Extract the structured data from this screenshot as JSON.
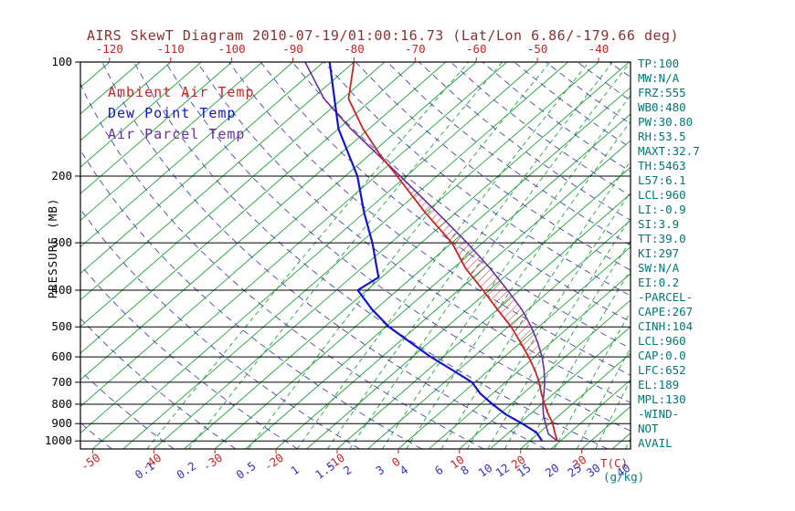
{
  "title": "AIRS SkewT Diagram 2010-07-19/01:00:16.73 (Lat/Lon 6.86/-179.66 deg)",
  "colors": {
    "background": "#ffffff",
    "title": "#8b2f2f",
    "stats": "#007878",
    "temp_red": "#cc2222",
    "dew_blue": "#1414cc",
    "parcel_purple": "#6a2d9f",
    "isotherm_green": "#1fa33c",
    "adiabat_indigo": "#4444aa",
    "axis_black": "#000000",
    "mixing_label_blue": "#3333bb",
    "unit_teal": "#008080"
  },
  "legend": {
    "ambient": {
      "label": "Ambient Air Temp",
      "color": "#cc2222"
    },
    "dewpoint": {
      "label": "Dew Point Temp",
      "color": "#1414cc"
    },
    "parcel": {
      "label": "Air Parcel Temp",
      "color": "#6a2d9f"
    }
  },
  "axes": {
    "pressure_label": "PRESSURE (MB)",
    "pressure_ticks": [
      100,
      200,
      300,
      400,
      500,
      600,
      700,
      800,
      900,
      1000
    ],
    "top_temp_ticks": [
      -120,
      -110,
      -100,
      -90,
      -80,
      -70,
      -60,
      -50,
      -40
    ],
    "bottom_temp_ticks": [
      -50,
      -40,
      -30,
      -20,
      -10,
      0,
      10,
      20,
      30
    ],
    "temp_unit_label": "T(C)",
    "mixing_ratio_ticks": [
      0.1,
      0.2,
      0.5,
      1,
      1.5,
      2,
      3,
      4,
      6,
      8,
      10,
      12,
      15,
      20,
      25,
      30,
      40
    ],
    "mixing_unit_label": "(g/kg)"
  },
  "stats_panel": {
    "lines": [
      "TP:100",
      "MW:N/A",
      "FRZ:555",
      "WB0:480",
      "PW:30.80",
      "RH:53.5",
      "MAXT:32.7",
      "TH:5463",
      "L57:6.1",
      "LCL:960",
      "LI:-0.9",
      "SI:3.9",
      "TT:39.0",
      "KI:297",
      "SW:N/A",
      "EI:0.2",
      "-PARCEL-",
      "CAPE:267",
      "CINH:104",
      "LCL:960",
      "CAP:0.0",
      "LFC:652",
      "EL:189",
      "MPL:130",
      "-WIND-",
      "NOT",
      "AVAIL"
    ]
  },
  "chart_data": {
    "type": "line",
    "subtype": "skew-t-log-p",
    "title": "AIRS SkewT Diagram 2010-07-19/01:00:16.73 (Lat/Lon 6.86/-179.66 deg)",
    "xlabel": "T(C)",
    "ylabel": "PRESSURE (MB)",
    "y_scale": "log",
    "y_range_mb": [
      100,
      1050
    ],
    "x_range_c_at_surface": [
      -52,
      38
    ],
    "legend_position": "top-left-inside",
    "grid": {
      "isobars_mb": [
        200,
        300,
        400,
        500,
        600,
        700,
        800,
        900,
        1000
      ],
      "isotherms_c": {
        "min": -160,
        "max": 45,
        "step": 5
      },
      "dry_adiabats_theta_c": {
        "min": -60,
        "max": 190,
        "step": 10
      },
      "mixing_ratio_g_kg": [
        0.1,
        0.2,
        0.5,
        1,
        1.5,
        2,
        3,
        4,
        6,
        8,
        10,
        12,
        15,
        20,
        25,
        30,
        40
      ]
    },
    "hatch_between_pressures_mb": [
      200,
      600
    ],
    "series": [
      {
        "name": "Ambient Air Temp",
        "color": "#cc2222",
        "points": [
          [
            1000,
            24.5
          ],
          [
            950,
            22.5
          ],
          [
            900,
            20.5
          ],
          [
            850,
            18.0
          ],
          [
            800,
            15.5
          ],
          [
            750,
            13.0
          ],
          [
            700,
            10.5
          ],
          [
            650,
            7.5
          ],
          [
            600,
            4.0
          ],
          [
            550,
            0.0
          ],
          [
            500,
            -4.5
          ],
          [
            450,
            -10.0
          ],
          [
            400,
            -16.0
          ],
          [
            350,
            -23.0
          ],
          [
            300,
            -30.0
          ],
          [
            250,
            -40.0
          ],
          [
            200,
            -51.5
          ],
          [
            175,
            -58.5
          ],
          [
            150,
            -66.0
          ],
          [
            125,
            -74.0
          ],
          [
            100,
            -80.0
          ]
        ]
      },
      {
        "name": "Dew Point Temp",
        "color": "#1414cc",
        "points": [
          [
            1000,
            22.0
          ],
          [
            950,
            19.5
          ],
          [
            900,
            15.5
          ],
          [
            850,
            11.0
          ],
          [
            800,
            7.0
          ],
          [
            750,
            3.0
          ],
          [
            700,
            -0.5
          ],
          [
            650,
            -6.0
          ],
          [
            600,
            -12.0
          ],
          [
            550,
            -18.0
          ],
          [
            500,
            -24.5
          ],
          [
            450,
            -30.5
          ],
          [
            400,
            -36.5
          ],
          [
            370,
            -35.5
          ],
          [
            350,
            -37.5
          ],
          [
            300,
            -43.0
          ],
          [
            250,
            -50.0
          ],
          [
            200,
            -58.0
          ],
          [
            150,
            -70.0
          ],
          [
            100,
            -84.0
          ]
        ]
      },
      {
        "name": "Air Parcel Temp",
        "color": "#6a2d9f",
        "points": [
          [
            1000,
            24.5
          ],
          [
            960,
            21.8
          ],
          [
            900,
            19.3
          ],
          [
            850,
            17.2
          ],
          [
            800,
            15.2
          ],
          [
            750,
            13.4
          ],
          [
            700,
            11.4
          ],
          [
            650,
            9.0
          ],
          [
            600,
            6.2
          ],
          [
            550,
            2.8
          ],
          [
            500,
            -1.2
          ],
          [
            450,
            -6.0
          ],
          [
            400,
            -12.0
          ],
          [
            350,
            -19.0
          ],
          [
            300,
            -27.5
          ],
          [
            250,
            -38.0
          ],
          [
            200,
            -51.0
          ],
          [
            150,
            -68.0
          ],
          [
            125,
            -78.0
          ],
          [
            100,
            -88.0
          ]
        ]
      }
    ]
  }
}
